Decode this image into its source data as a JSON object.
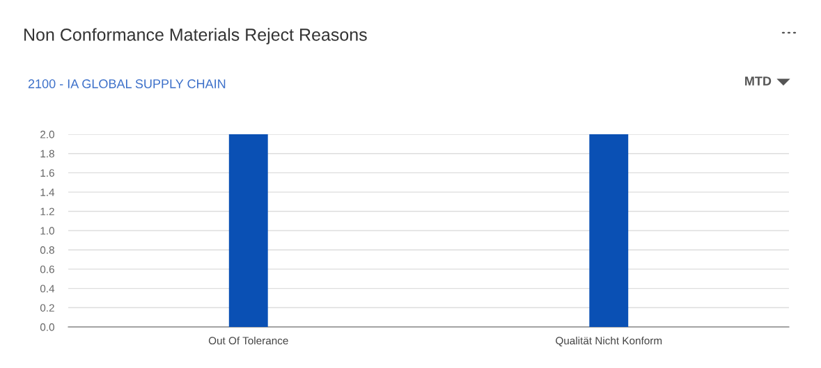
{
  "chart_data": {
    "type": "bar",
    "title": "Non Conformance Materials Reject Reasons",
    "subtitle": "2100 - IA GLOBAL SUPPLY CHAIN",
    "annotations": [
      "MTD"
    ],
    "categories": [
      "Out Of Tolerance",
      "Qualität Nicht Konform"
    ],
    "values": [
      2,
      2
    ],
    "color": "#0a50b4",
    "ylim": [
      0,
      2
    ],
    "yticks": [
      {
        "value": 0,
        "label": "0.0"
      },
      {
        "value": 0.2,
        "label": "0.2"
      },
      {
        "value": 0.4,
        "label": "0.4"
      },
      {
        "value": 0.6,
        "label": "0.6"
      },
      {
        "value": 0.8,
        "label": "0.8"
      },
      {
        "value": 1.0,
        "label": "1.0"
      },
      {
        "value": 1.2,
        "label": "1.2"
      },
      {
        "value": 1.4,
        "label": "1.4"
      },
      {
        "value": 1.6,
        "label": "1.6"
      },
      {
        "value": 1.8,
        "label": "1.8"
      },
      {
        "value": 2.0,
        "label": "2.0"
      }
    ],
    "grid": "y"
  }
}
